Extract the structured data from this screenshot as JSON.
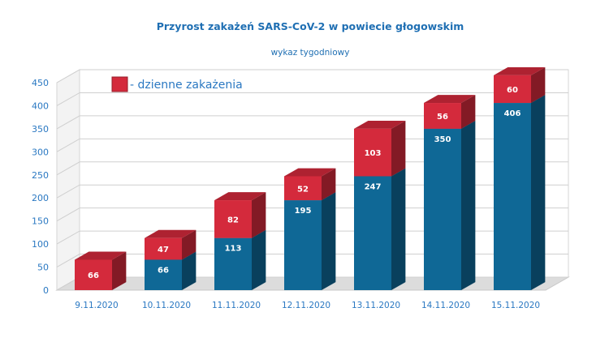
{
  "chart_data": {
    "type": "bar",
    "stacked": true,
    "three_d": true,
    "title": "Przyrost zakażeń SARS-CoV-2 w powiecie głogowskim",
    "subtitle": "wykaz tygodniowy",
    "categories": [
      "9.11.2020",
      "10.11.2020",
      "11.11.2020",
      "12.11.2020",
      "13.11.2020",
      "14.11.2020",
      "15.11.2020"
    ],
    "series": [
      {
        "name": "",
        "color": "#0f6896",
        "values": [
          0,
          66,
          113,
          195,
          247,
          350,
          406
        ]
      },
      {
        "name": "- dzienne zakażenia",
        "color": "#d42a3c",
        "values": [
          66,
          47,
          82,
          52,
          103,
          56,
          60
        ]
      }
    ],
    "yticks": [
      "0",
      "50",
      "100",
      "150",
      "200",
      "250",
      "300",
      "350",
      "400",
      "450"
    ],
    "ylim": [
      0,
      450
    ],
    "grid": true,
    "legend_position": "top-left"
  }
}
